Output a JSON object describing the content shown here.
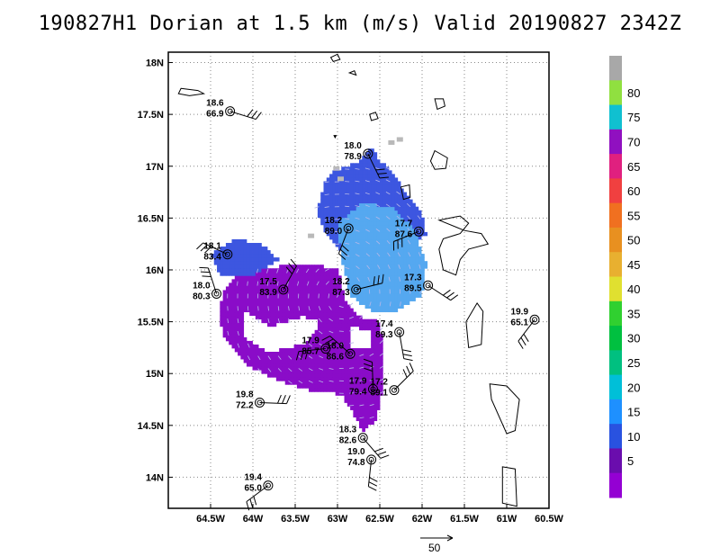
{
  "title": "190827H1 Dorian at 1.5 km (m/s) Valid 20190827  2342Z",
  "ref_vector_label": "50",
  "chart_data": {
    "type": "heatmap",
    "title": "190827H1 Dorian at 1.5 km (m/s) Valid 20190827  2342Z",
    "units": "m/s",
    "grid": true,
    "x_ticks": [
      "64.5W",
      "64W",
      "63.5W",
      "63W",
      "62.5W",
      "62W",
      "61.5W",
      "61W",
      "60.5W"
    ],
    "x_tick_values": [
      -64.5,
      -64.0,
      -63.5,
      -63.0,
      -62.5,
      -62.0,
      -61.5,
      -61.0,
      -60.5
    ],
    "y_ticks": [
      "14N",
      "14.5N",
      "15N",
      "15.5N",
      "16N",
      "16.5N",
      "17N",
      "17.5N",
      "18N"
    ],
    "y_tick_values": [
      14.0,
      14.5,
      15.0,
      15.5,
      16.0,
      16.5,
      17.0,
      17.5,
      18.0
    ],
    "xlim": [
      -65.0,
      -60.5
    ],
    "ylim": [
      13.7,
      18.1
    ],
    "colorbar": {
      "labels": [
        "5",
        "10",
        "15",
        "20",
        "25",
        "30",
        "35",
        "40",
        "45",
        "50",
        "55",
        "60",
        "65",
        "70",
        "75",
        "80"
      ],
      "colors": [
        "#9400d3",
        "#6a0dad",
        "#2952e0",
        "#1e90ff",
        "#00bfd8",
        "#00c080",
        "#00c040",
        "#30d030",
        "#e0e030",
        "#e8b030",
        "#e89020",
        "#f07020",
        "#f04040",
        "#e0207f",
        "#9010c0",
        "#10c0d0",
        "#90e040",
        "#a8a8a8"
      ]
    },
    "observations": [
      {
        "lon": -64.27,
        "lat": 17.53,
        "pressure": "18.6",
        "value": "66.9"
      },
      {
        "lon": -62.64,
        "lat": 17.12,
        "pressure": "18.0",
        "value": "78.9"
      },
      {
        "lon": -62.87,
        "lat": 16.4,
        "pressure": "18.2",
        "value": "89.0"
      },
      {
        "lon": -62.04,
        "lat": 16.37,
        "pressure": "17.7",
        "value": "87.6"
      },
      {
        "lon": -64.3,
        "lat": 16.15,
        "pressure": "18.1",
        "value": "83.4"
      },
      {
        "lon": -64.43,
        "lat": 15.77,
        "pressure": "18.0",
        "value": "80.3"
      },
      {
        "lon": -63.64,
        "lat": 15.81,
        "pressure": "17.5",
        "value": "83.9"
      },
      {
        "lon": -62.78,
        "lat": 15.81,
        "pressure": "18.2",
        "value": "87.3"
      },
      {
        "lon": -61.93,
        "lat": 15.85,
        "pressure": "17.3",
        "value": "89.5"
      },
      {
        "lon": -62.27,
        "lat": 15.4,
        "pressure": "17.4",
        "value": "89.3"
      },
      {
        "lon": -60.67,
        "lat": 15.52,
        "pressure": "19.9",
        "value": "65.1"
      },
      {
        "lon": -63.14,
        "lat": 15.24,
        "pressure": "17.9",
        "value": "85.7"
      },
      {
        "lon": -62.85,
        "lat": 15.19,
        "pressure": "18.0",
        "value": "86.6"
      },
      {
        "lon": -62.58,
        "lat": 14.85,
        "pressure": "17.9",
        "value": "79.4"
      },
      {
        "lon": -62.33,
        "lat": 14.84,
        "pressure": "17.2",
        "value": "89.1"
      },
      {
        "lon": -63.92,
        "lat": 14.72,
        "pressure": "19.8",
        "value": "72.2"
      },
      {
        "lon": -62.7,
        "lat": 14.38,
        "pressure": "18.3",
        "value": "82.6"
      },
      {
        "lon": -62.6,
        "lat": 14.17,
        "pressure": "19.0",
        "value": "74.8"
      },
      {
        "lon": -63.82,
        "lat": 13.92,
        "pressure": "19.4",
        "value": "65.0"
      }
    ]
  }
}
